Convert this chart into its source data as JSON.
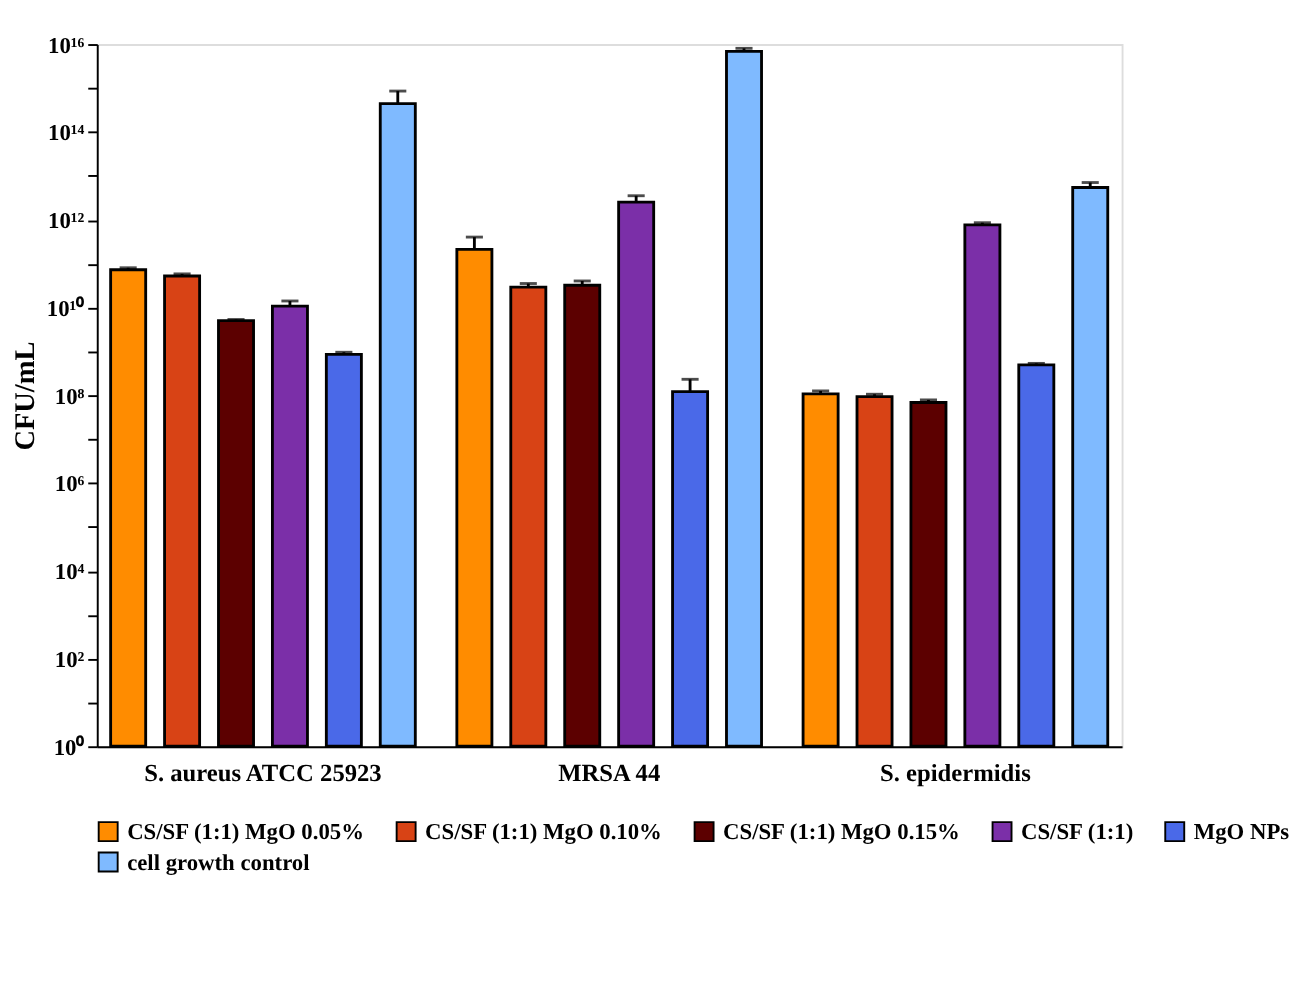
{
  "chart_data": {
    "type": "bar",
    "ylabel": "CFU/mL",
    "categories": [
      "S. aureus ATCC 25923",
      "MRSA 44",
      "S. epidermidis"
    ],
    "series": [
      {
        "name": "CS/SF (1:1) MgO 0.05%",
        "color": "#ff8c00",
        "values": [
          72000000000.0,
          210000000000.0,
          107000000.0
        ],
        "errors": [
          [
            72000000000.0,
            80000000000.0
          ],
          [
            210000000000.0,
            400000000000.0
          ],
          [
            107000000.0,
            125000000.0
          ]
        ]
      },
      {
        "name": "CS/SF (1:1) MgO 0.10%",
        "color": "#d84315",
        "values": [
          52000000000.0,
          29000000000.0,
          93000000.0
        ],
        "errors": [
          [
            52000000000.0,
            58000000000.0
          ],
          [
            29000000000.0,
            35000000000.0
          ],
          [
            93000000.0,
            105000000.0
          ]
        ]
      },
      {
        "name": "CS/SF (1:1) MgO 0.15%",
        "color": "#5c0000",
        "values": [
          5000000000.0,
          32000000000.0,
          68000000.0
        ],
        "errors": [
          [
            5000000000.0,
            5300000000.0
          ],
          [
            32000000000.0,
            40000000000.0
          ],
          [
            68000000.0,
            78000000.0
          ]
        ]
      },
      {
        "name": "CS/SF (1:1)",
        "color": "#7b2fa8",
        "values": [
          10700000000.0,
          2500000000000.0,
          760000000000.0
        ],
        "errors": [
          [
            10700000000.0,
            14000000000.0
          ],
          [
            2500000000000.0,
            3500000000000.0
          ],
          [
            760000000000.0,
            850000000000.0
          ]
        ]
      },
      {
        "name": "MgO NPs",
        "color": "#4a69e8",
        "values": [
          850000000.0,
          120000000.0,
          490000000.0
        ],
        "errors": [
          [
            850000000.0,
            950000000.0
          ],
          [
            120000000.0,
            230000000.0
          ],
          [
            490000000.0,
            530000000.0
          ]
        ]
      },
      {
        "name": "cell growth control",
        "color": "#7fbaff",
        "values": [
          440000000000000.0,
          6800000000000000.0,
          5400000000000.0
        ],
        "errors": [
          [
            440000000000000.0,
            850000000000000.0
          ],
          [
            6800000000000000.0,
            8000000000000000.0
          ],
          [
            5400000000000.0,
            7000000000000.0
          ]
        ]
      }
    ],
    "log": "y",
    "ylim": [
      1,
      1e+16
    ],
    "yticks": [
      {
        "value": 1,
        "label": "10⁰"
      },
      {
        "value": 10.0,
        "label": null
      },
      {
        "value": 100.0,
        "label": "10²"
      },
      {
        "value": 1000.0,
        "label": null
      },
      {
        "value": 10000.0,
        "label": "10⁴"
      },
      {
        "value": 100000.0,
        "label": null
      },
      {
        "value": 1000000.0,
        "label": "10⁶"
      },
      {
        "value": 10000000.0,
        "label": null
      },
      {
        "value": 100000000.0,
        "label": "10⁸"
      },
      {
        "value": 1000000000.0,
        "label": null
      },
      {
        "value": 10000000000.0,
        "label": "10¹⁰"
      },
      {
        "value": 100000000000.0,
        "label": null
      },
      {
        "value": 1000000000000.0,
        "label": "10¹²"
      },
      {
        "value": 10000000000000.0,
        "label": null
      },
      {
        "value": 100000000000000.0,
        "label": "10¹⁴"
      },
      {
        "value": 1000000000000000.0,
        "label": null
      },
      {
        "value": 1e+16,
        "label": "10¹⁶"
      }
    ],
    "grid": false,
    "legend": "bottom"
  }
}
